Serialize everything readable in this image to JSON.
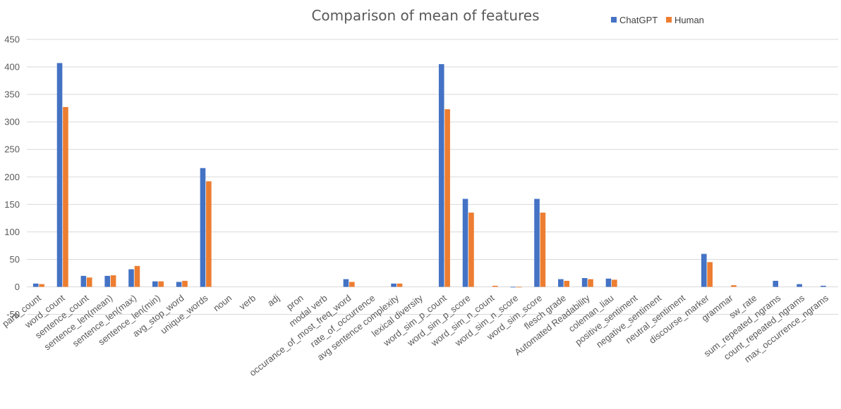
{
  "chart_data": {
    "type": "bar",
    "title": "Comparison of mean of features",
    "xlabel": "",
    "ylabel": "",
    "ylim": [
      -50,
      450
    ],
    "yticks": [
      -50,
      0,
      50,
      100,
      150,
      200,
      250,
      300,
      350,
      400,
      450
    ],
    "grid": true,
    "legend_position": "top-right",
    "categories": [
      "para_count",
      "word_count",
      "sentence_count",
      "sentence_len(mean)",
      "sentence_len(max)",
      "sentence_len(min)",
      "avg_stop_word",
      "unique_words",
      "noun",
      "verb",
      "adj",
      "pron",
      "modal verb",
      "occurance_of_most_freq_word",
      "rate_of_occurrence",
      "avg sentence complexity",
      "lexical diversity",
      "word_sim_p_count",
      "word_sim_p_score",
      "word_sim_n_count",
      "word_sim_n_score",
      "word_sim_score",
      "flesch grade",
      "Automated Readability",
      "coleman_liau",
      "positive_sentiment",
      "negative_sentiment",
      "neutral_sentiment",
      "discourse_marker",
      "grammar",
      "sw_rate",
      "sum_repeated_ngrams",
      "count_repeated_ngrams",
      "max_occurrence_ngrams"
    ],
    "series": [
      {
        "name": "ChatGPT",
        "color": "#4472C4",
        "values": [
          6,
          407,
          20,
          20,
          32,
          10,
          9,
          216,
          0,
          0,
          0,
          0,
          0,
          14,
          0,
          6,
          0,
          405,
          160,
          0,
          -1,
          160,
          14,
          16,
          15,
          0,
          0,
          0,
          60,
          0,
          0,
          11,
          5,
          2
        ]
      },
      {
        "name": "Human",
        "color": "#ED7D31",
        "values": [
          5,
          327,
          17,
          21,
          38,
          10,
          11,
          192,
          0,
          0,
          0,
          0,
          0,
          9,
          0,
          6,
          0,
          323,
          135,
          2,
          -1,
          135,
          11,
          14,
          13,
          0,
          0,
          0,
          45,
          3,
          0,
          0,
          0,
          0
        ]
      }
    ]
  }
}
